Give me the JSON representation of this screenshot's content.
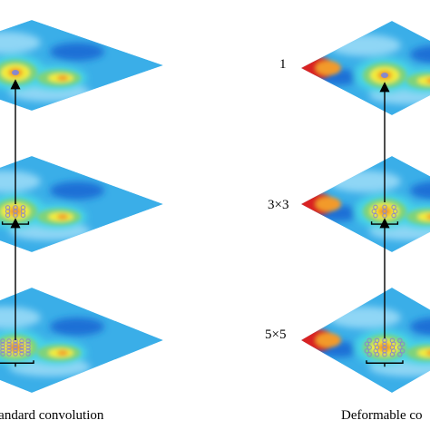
{
  "captions": {
    "left": "tandard convolution",
    "right": "Deformable co"
  },
  "layer_labels": [
    "1",
    "3×3",
    "5×5"
  ],
  "colors": {
    "base": "#3aaee8",
    "light": "#8fd6f5",
    "deep": "#1f6fd6",
    "cyan": "#47d3e6",
    "green": "#7fd37a",
    "yellow": "#f2ec3a",
    "orange": "#f29a2a",
    "red": "#d92020",
    "grid_point": "#8888cc",
    "arrow": "#000000"
  }
}
